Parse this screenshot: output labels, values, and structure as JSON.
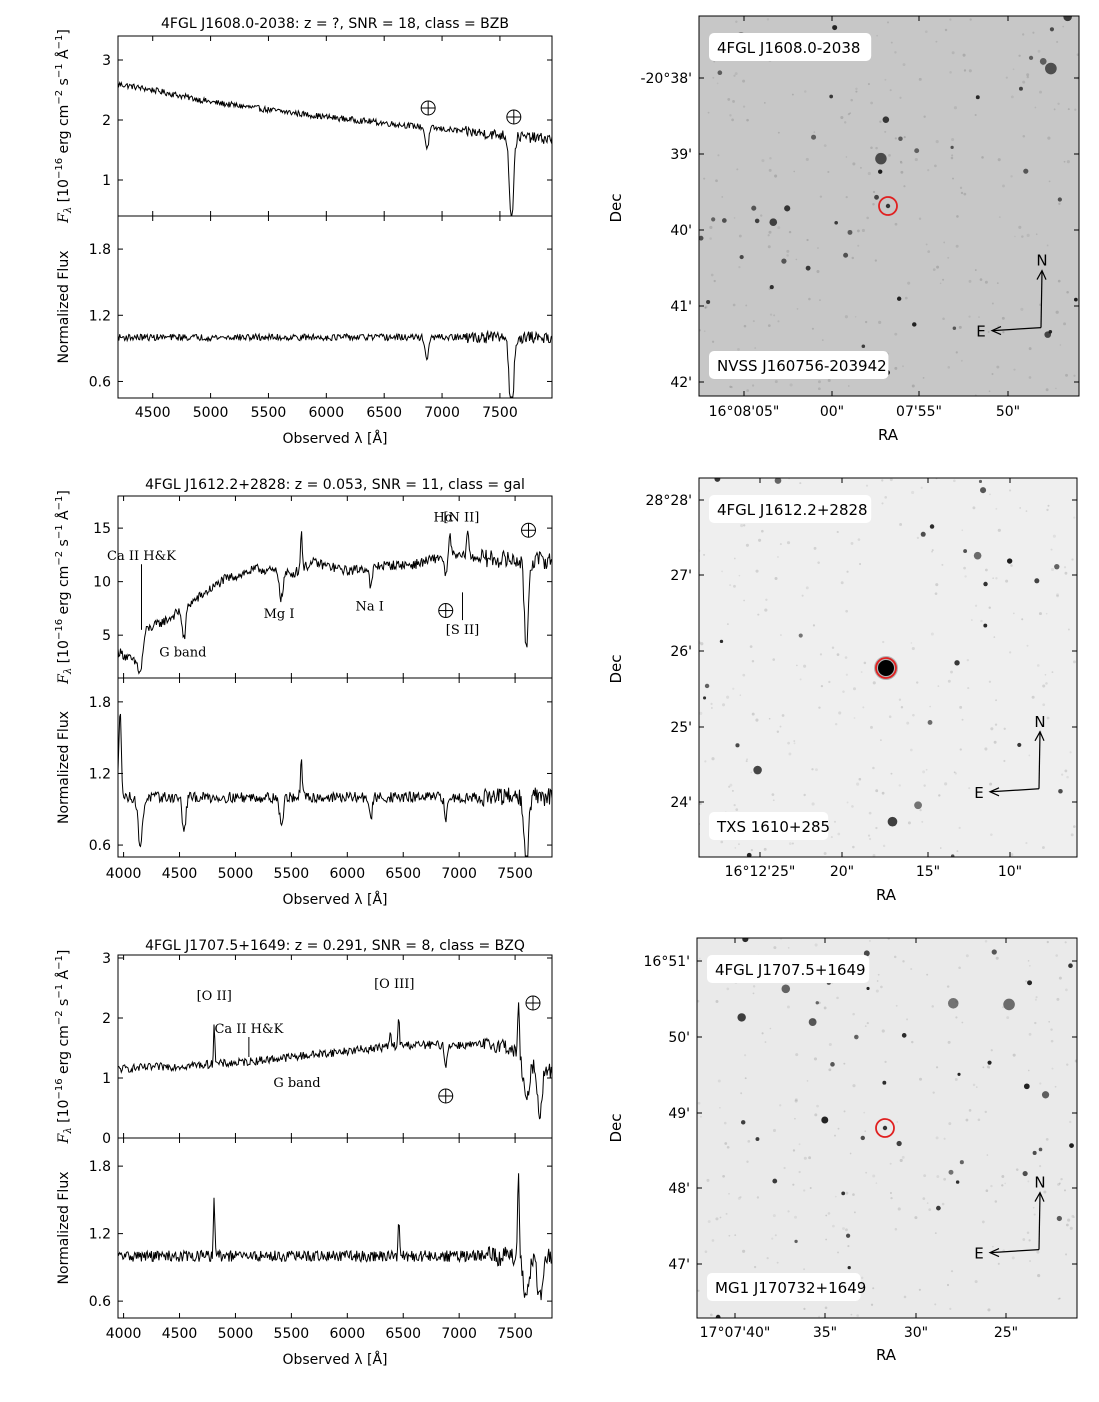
{
  "figure": {
    "axis_labels": {
      "spec_x": "Observed λ [Å]",
      "spec_y_top": "F",
      "spec_y_top_sub": "λ",
      "spec_y_top_rest": " [10",
      "spec_y_top_exp1": "−16",
      "spec_y_top_units": " erg cm",
      "spec_y_top_exp2": "−2",
      "spec_y_top_s": " s",
      "spec_y_top_exp3": "−1",
      "spec_y_top_A": " Å",
      "spec_y_top_exp4": "−1",
      "spec_y_top_close": "]",
      "spec_y_bottom": "Normalized Flux",
      "img_x": "RA",
      "img_y": "Dec",
      "north": "N",
      "east": "E"
    }
  },
  "chart_data": [
    {
      "type": "line",
      "panel": "spectrum",
      "title": "4FGL J1608.0-2038: z = ?, SNR = 18, class = BZB",
      "xlim": [
        4200,
        7950
      ],
      "x_ticks": [
        "4500",
        "5000",
        "5500",
        "6000",
        "6500",
        "7000",
        "7500"
      ],
      "x_tick_values": [
        4500,
        5000,
        5500,
        6000,
        6500,
        7000,
        7500
      ],
      "top": {
        "ylim": [
          0.4,
          3.4
        ],
        "y_ticks": [
          "1",
          "2",
          "3"
        ],
        "y_tick_values": [
          1,
          2,
          3
        ],
        "continuum": [
          [
            4200,
            2.6
          ],
          [
            4500,
            2.5
          ],
          [
            5000,
            2.3
          ],
          [
            5500,
            2.17
          ],
          [
            6000,
            2.05
          ],
          [
            6500,
            1.95
          ],
          [
            7000,
            1.85
          ],
          [
            7500,
            1.75
          ],
          [
            7950,
            1.68
          ]
        ],
        "absorption": [
          [
            6870,
            0.35,
            15
          ],
          [
            7600,
            1.4,
            18
          ]
        ],
        "noise": 0.05
      },
      "bottom": {
        "ylim": [
          0.45,
          2.1
        ],
        "y_ticks": [
          "0.6",
          "1.2",
          "1.8"
        ],
        "y_tick_values": [
          0.6,
          1.2,
          1.8
        ],
        "continuum": [
          [
            4200,
            1.0
          ],
          [
            7950,
            1.0
          ]
        ],
        "absorption": [
          [
            6870,
            0.2,
            15
          ],
          [
            7600,
            0.75,
            18
          ]
        ],
        "noise": 0.03
      },
      "annotations": [
        {
          "label": "⊕",
          "x": 6880,
          "y": 2.2,
          "kind": "telluric"
        },
        {
          "label": "⊕",
          "x": 7620,
          "y": 2.05,
          "kind": "telluric"
        }
      ]
    },
    {
      "type": "line",
      "panel": "spectrum",
      "title": "4FGL J1612.2+2828: z = 0.053, SNR = 11, class = gal",
      "xlim": [
        3950,
        7830
      ],
      "x_ticks": [
        "4000",
        "4500",
        "5000",
        "5500",
        "6000",
        "6500",
        "7000",
        "7500"
      ],
      "x_tick_values": [
        4000,
        4500,
        5000,
        5500,
        6000,
        6500,
        7000,
        7500
      ],
      "top": {
        "ylim": [
          1.0,
          18.0
        ],
        "y_ticks": [
          "5",
          "10",
          "15"
        ],
        "y_tick_values": [
          5,
          10,
          15
        ],
        "continuum": [
          [
            3950,
            3.5
          ],
          [
            4100,
            2.5
          ],
          [
            4200,
            5.5
          ],
          [
            4400,
            6.5
          ],
          [
            4600,
            8.0
          ],
          [
            4900,
            10.2
          ],
          [
            5200,
            11.2
          ],
          [
            5500,
            10.7
          ],
          [
            5700,
            11.8
          ],
          [
            6000,
            11.0
          ],
          [
            6300,
            11.5
          ],
          [
            6600,
            11.6
          ],
          [
            6900,
            12.5
          ],
          [
            7200,
            12.2
          ],
          [
            7500,
            12.0
          ],
          [
            7830,
            12.0
          ]
        ],
        "absorption": [
          [
            4150,
            2.5,
            20
          ],
          [
            4540,
            3.0,
            15
          ],
          [
            5410,
            2.5,
            15
          ],
          [
            6210,
            2.0,
            12
          ],
          [
            6880,
            2.0,
            12
          ],
          [
            7600,
            8.0,
            18
          ]
        ],
        "emission": [
          [
            5590,
            3.5,
            8
          ],
          [
            6920,
            2.0,
            8
          ],
          [
            7075,
            2.5,
            10
          ]
        ],
        "noise": 0.45
      },
      "bottom": {
        "ylim": [
          0.5,
          2.0
        ],
        "y_ticks": [
          "0.6",
          "1.2",
          "1.8"
        ],
        "y_tick_values": [
          0.6,
          1.2,
          1.8
        ],
        "continuum": [
          [
            3950,
            1.1
          ],
          [
            4000,
            1.0
          ],
          [
            7830,
            1.0
          ]
        ],
        "absorption": [
          [
            4150,
            0.4,
            20
          ],
          [
            4540,
            0.3,
            15
          ],
          [
            5410,
            0.25,
            15
          ],
          [
            6210,
            0.2,
            12
          ],
          [
            6880,
            0.2,
            12
          ],
          [
            7600,
            0.65,
            18
          ]
        ],
        "emission": [
          [
            3970,
            0.7,
            10
          ],
          [
            5590,
            0.3,
            8
          ]
        ],
        "noise": 0.045
      },
      "annotations": [
        {
          "label": "Ca II H&K",
          "x": 4160,
          "y": 12.0,
          "kind": "line-label",
          "ptr": 5.5
        },
        {
          "label": "G band",
          "x": 4530,
          "y": 3.0,
          "kind": "line-label"
        },
        {
          "label": "Mg I",
          "x": 5390,
          "y": 6.6,
          "kind": "line-label"
        },
        {
          "label": "Na I",
          "x": 6200,
          "y": 7.3,
          "kind": "line-label"
        },
        {
          "label": "Hα",
          "x": 6860,
          "y": 15.6,
          "kind": "line-label"
        },
        {
          "label": "[N II]",
          "x": 7020,
          "y": 15.6,
          "kind": "line-label"
        },
        {
          "label": "[S II]",
          "x": 7030,
          "y": 5.1,
          "kind": "line-label",
          "ptr": 9.0
        },
        {
          "label": "⊕",
          "x": 6880,
          "y": 7.3,
          "kind": "telluric"
        },
        {
          "label": "⊕",
          "x": 7620,
          "y": 14.8,
          "kind": "telluric"
        }
      ]
    },
    {
      "type": "line",
      "panel": "spectrum",
      "title": "4FGL J1707.5+1649: z = 0.291, SNR = 8, class = BZQ",
      "xlim": [
        3950,
        7830
      ],
      "x_ticks": [
        "4000",
        "4500",
        "5000",
        "5500",
        "6000",
        "6500",
        "7000",
        "7500"
      ],
      "x_tick_values": [
        4000,
        4500,
        5000,
        5500,
        6000,
        6500,
        7000,
        7500
      ],
      "top": {
        "ylim": [
          0.0,
          3.05
        ],
        "y_ticks": [
          "0",
          "1",
          "2",
          "3"
        ],
        "y_tick_values": [
          0,
          1,
          2,
          3
        ],
        "continuum": [
          [
            3950,
            1.15
          ],
          [
            4500,
            1.2
          ],
          [
            5000,
            1.25
          ],
          [
            5500,
            1.35
          ],
          [
            6000,
            1.45
          ],
          [
            6500,
            1.55
          ],
          [
            7000,
            1.55
          ],
          [
            7400,
            1.55
          ],
          [
            7600,
            1.3
          ],
          [
            7830,
            1.1
          ]
        ],
        "absorption": [
          [
            6880,
            0.4,
            10
          ],
          [
            7600,
            0.7,
            25
          ],
          [
            7720,
            0.8,
            20
          ]
        ],
        "emission": [
          [
            4810,
            0.7,
            6
          ],
          [
            6460,
            0.45,
            6
          ],
          [
            6385,
            0.25,
            6
          ],
          [
            7530,
            0.8,
            8
          ]
        ],
        "noise": 0.07
      },
      "bottom": {
        "ylim": [
          0.45,
          2.05
        ],
        "y_ticks": [
          "0.6",
          "1.2",
          "1.8"
        ],
        "y_tick_values": [
          0.6,
          1.2,
          1.8
        ],
        "continuum": [
          [
            3950,
            1.0
          ],
          [
            7830,
            1.0
          ]
        ],
        "absorption": [
          [
            7600,
            0.35,
            25
          ],
          [
            7720,
            0.4,
            20
          ]
        ],
        "emission": [
          [
            4810,
            0.55,
            6
          ],
          [
            6460,
            0.3,
            6
          ],
          [
            7530,
            0.7,
            8
          ]
        ],
        "noise": 0.05
      },
      "annotations": [
        {
          "label": "[O II]",
          "x": 4810,
          "y": 2.3,
          "kind": "line-label"
        },
        {
          "label": "Ca II H&K",
          "x": 5120,
          "y": 1.75,
          "kind": "line-label",
          "ptr": 1.35
        },
        {
          "label": "G band",
          "x": 5550,
          "y": 0.85,
          "kind": "line-label"
        },
        {
          "label": "[O III]",
          "x": 6420,
          "y": 2.5,
          "kind": "line-label"
        },
        {
          "label": "⊕",
          "x": 6880,
          "y": 0.7,
          "kind": "telluric"
        },
        {
          "label": "⊕",
          "x": 7660,
          "y": 2.25,
          "kind": "telluric"
        }
      ]
    },
    {
      "type": "image",
      "panel": "finder",
      "name": "4FGL J1608.0-2038",
      "counterpart": "NVSS J160756-203942",
      "ra_ticks": [
        "16°08'05\"",
        "00\"",
        "07'55\"",
        "50\""
      ],
      "dec_ticks": [
        "-20°38'",
        "39'",
        "40'",
        "41'",
        "42'"
      ],
      "background": "#c7c7c7",
      "marker_color": "#e02020"
    },
    {
      "type": "image",
      "panel": "finder",
      "name": "4FGL J1612.2+2828",
      "counterpart": "TXS 1610+285",
      "ra_ticks": [
        "16°12'25\"",
        "20\"",
        "15\"",
        "10\""
      ],
      "dec_ticks": [
        "28°28'",
        "27'",
        "26'",
        "25'",
        "24'"
      ],
      "background": "#efefef",
      "marker_color": "#e02020"
    },
    {
      "type": "image",
      "panel": "finder",
      "name": "4FGL J1707.5+1649",
      "counterpart": "MG1 J170732+1649",
      "ra_ticks": [
        "17°07'40\"",
        "35\"",
        "30\"",
        "25\""
      ],
      "dec_ticks": [
        "16°51'",
        "50'",
        "49'",
        "48'",
        "47'"
      ],
      "background": "#eaeaea",
      "marker_color": "#e02020"
    }
  ]
}
